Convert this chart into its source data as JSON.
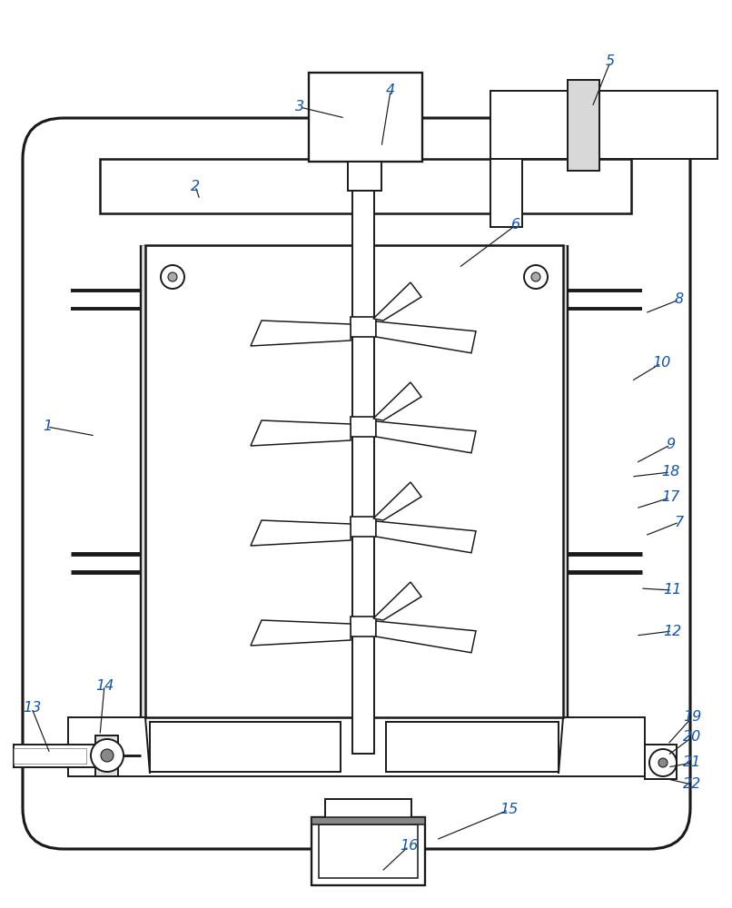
{
  "bg": "#ffffff",
  "lc": "#1a1a1a",
  "lw": 1.4,
  "fw": 8.06,
  "fh": 10.0
}
